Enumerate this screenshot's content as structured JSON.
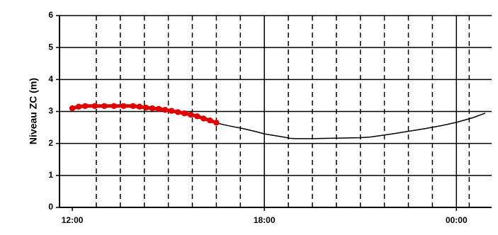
{
  "chart_data": {
    "type": "line",
    "title": "",
    "xlabel": "",
    "ylabel": "Niveau ZC (m)",
    "ylim": [
      0,
      6
    ],
    "xlim_hours": [
      11.6,
      25.1
    ],
    "y_ticks": [
      0,
      1,
      2,
      3,
      4,
      5,
      6
    ],
    "x_tick_labels": [
      {
        "label": "12:00",
        "hour": 12
      },
      {
        "label": "18:00",
        "hour": 18
      },
      {
        "label": "00:00",
        "hour": 24
      }
    ],
    "grid": {
      "horizontal_major": true,
      "vertical_major_hours": [
        18,
        24
      ],
      "vertical_minor_dashed_hours": [
        12.75,
        13.5,
        14.25,
        15.0,
        15.75,
        16.5,
        17.25,
        18.75,
        19.5,
        20.25,
        21.0,
        21.75,
        22.5,
        23.25,
        24.4
      ]
    },
    "legend": "none",
    "series": [
      {
        "kind": "prediction",
        "color": "#000000",
        "points": [
          [
            16.5,
            2.64
          ],
          [
            16.9,
            2.55
          ],
          [
            17.3,
            2.47
          ],
          [
            17.7,
            2.38
          ],
          [
            18.0,
            2.3
          ],
          [
            18.3,
            2.25
          ],
          [
            18.6,
            2.2
          ],
          [
            18.8,
            2.16
          ],
          [
            19.0,
            2.15
          ],
          [
            19.5,
            2.15
          ],
          [
            20.0,
            2.16
          ],
          [
            20.5,
            2.17
          ],
          [
            21.0,
            2.18
          ],
          [
            21.3,
            2.2
          ],
          [
            21.6,
            2.24
          ],
          [
            22.0,
            2.3
          ],
          [
            22.5,
            2.38
          ],
          [
            23.0,
            2.46
          ],
          [
            23.5,
            2.55
          ],
          [
            24.0,
            2.66
          ],
          [
            24.5,
            2.8
          ],
          [
            24.9,
            2.95
          ]
        ]
      },
      {
        "kind": "observation",
        "color": "#e00000",
        "points": [
          [
            12.0,
            3.1
          ],
          [
            12.2,
            3.15
          ],
          [
            12.4,
            3.17
          ],
          [
            12.7,
            3.17
          ],
          [
            13.0,
            3.17
          ],
          [
            13.3,
            3.17
          ],
          [
            13.6,
            3.17
          ],
          [
            13.9,
            3.17
          ],
          [
            14.1,
            3.15
          ],
          [
            14.3,
            3.12
          ],
          [
            14.5,
            3.1
          ],
          [
            14.7,
            3.08
          ],
          [
            14.9,
            3.05
          ],
          [
            15.1,
            3.02
          ],
          [
            15.3,
            2.98
          ],
          [
            15.5,
            2.94
          ],
          [
            15.7,
            2.9
          ],
          [
            15.9,
            2.85
          ],
          [
            16.1,
            2.78
          ],
          [
            16.3,
            2.72
          ],
          [
            16.5,
            2.65
          ]
        ]
      }
    ]
  }
}
